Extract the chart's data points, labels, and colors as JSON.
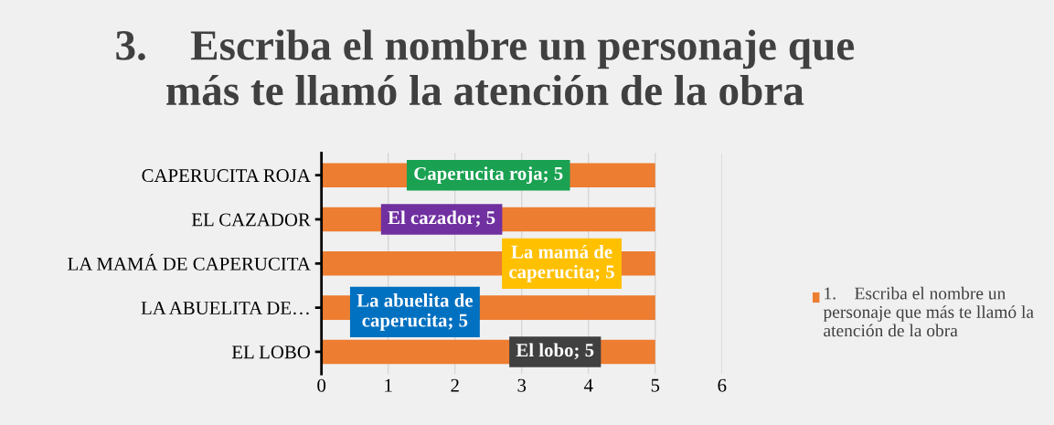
{
  "chart_data": {
    "type": "bar",
    "orientation": "horizontal",
    "title": "3.    Escriba el nombre un personaje que\nmás te llamó la atención de la obra",
    "categories": [
      "CAPERUCITA ROJA",
      "EL CAZADOR",
      "LA MAMÁ DE CAPERUCITA",
      "LA ABUELITA DE…",
      "EL LOBO"
    ],
    "series": [
      {
        "name": "1.    Escriba el nombre un personaje que más te llamó la atención de la obra",
        "color": "#ed7d31",
        "values": [
          5,
          5,
          5,
          5,
          5
        ]
      }
    ],
    "value_labels": [
      "Caperucita roja; 5",
      "El cazador; 5",
      "La mamá de\ncaperucita; 5",
      "La abuelita de\ncaperucita; 5",
      "El lobo; 5"
    ],
    "xlim": [
      0,
      6
    ],
    "xticks": [
      0,
      1,
      2,
      3,
      4,
      5,
      6
    ],
    "grid": "x",
    "legend": "right"
  }
}
